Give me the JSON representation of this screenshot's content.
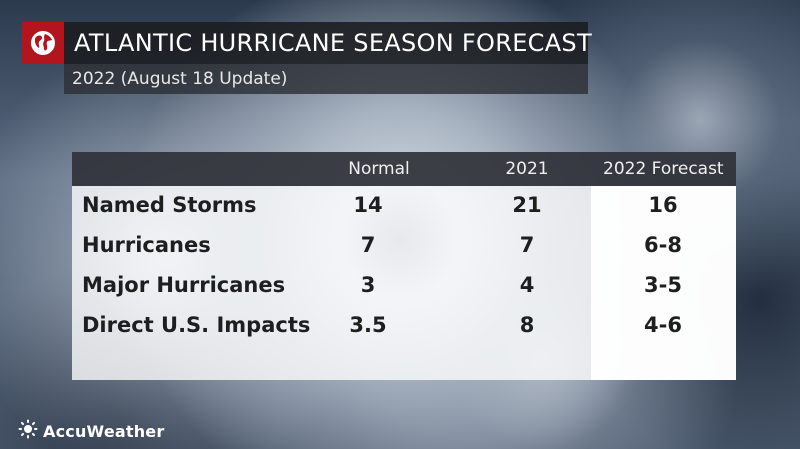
{
  "header": {
    "title": "ATLANTIC HURRICANE SEASON FORECAST",
    "subtitle": "2022 (August 18 Update)"
  },
  "table": {
    "columns": [
      "Normal",
      "2021",
      "2022 Forecast"
    ],
    "rows": [
      {
        "label": "Named Storms",
        "values": [
          "14",
          "21",
          "16"
        ]
      },
      {
        "label": "Hurricanes",
        "values": [
          "7",
          "7",
          "6-8"
        ]
      },
      {
        "label": "Major Hurricanes",
        "values": [
          "3",
          "4",
          "3-5"
        ]
      },
      {
        "label": "Direct U.S. Impacts",
        "values": [
          "3.5",
          "8",
          "4-6"
        ]
      }
    ]
  },
  "brand": {
    "name": "AccuWeather",
    "logo_icon": "sun-icon",
    "header_icon": "globe-icon",
    "accent_color": "#b3151f"
  }
}
